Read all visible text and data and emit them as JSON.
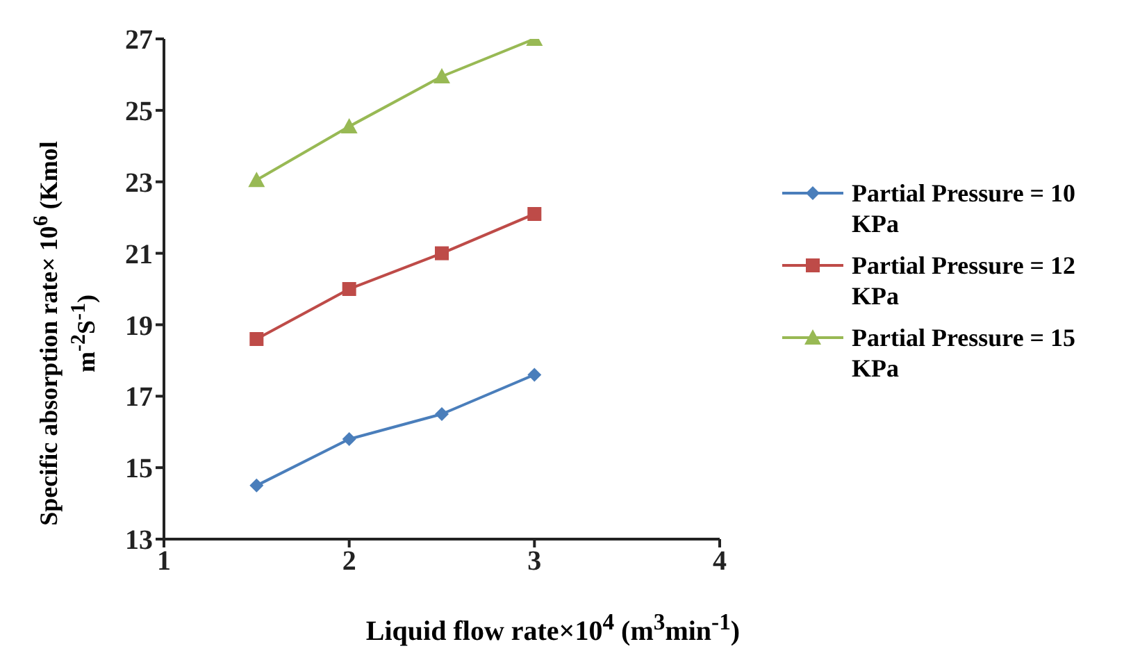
{
  "chart_data": {
    "type": "line",
    "xlabel": "Liquid flow rate×10$^{4}$ (m$^{3}$min$^{-1}$)",
    "ylabel": "Specific absorption rate× 10$^{6}$ (Kmol m$^{-2}$S$^{-1}$)",
    "x": [
      1.5,
      2,
      2.5,
      3
    ],
    "series": [
      {
        "name": "Partial Pressure = 10 KPa",
        "color": "#4a7ebb",
        "marker": "diamond",
        "values": [
          14.5,
          15.8,
          16.5,
          17.6
        ]
      },
      {
        "name": "Partial Pressure = 12 KPa",
        "color": "#be4b48",
        "marker": "square",
        "values": [
          18.6,
          20.0,
          21.0,
          22.1
        ]
      },
      {
        "name": "Partial Pressure = 15 KPa",
        "color": "#98b954",
        "marker": "triangle",
        "values": [
          23.05,
          24.55,
          25.95,
          27.0
        ]
      }
    ],
    "xlim": [
      1,
      4
    ],
    "xticks": [
      1,
      2,
      3,
      4
    ],
    "ylim": [
      13,
      27
    ],
    "yticks": [
      13,
      15,
      17,
      19,
      21,
      23,
      25,
      27
    ],
    "grid": false,
    "legend": "right",
    "line_style": "solid"
  }
}
